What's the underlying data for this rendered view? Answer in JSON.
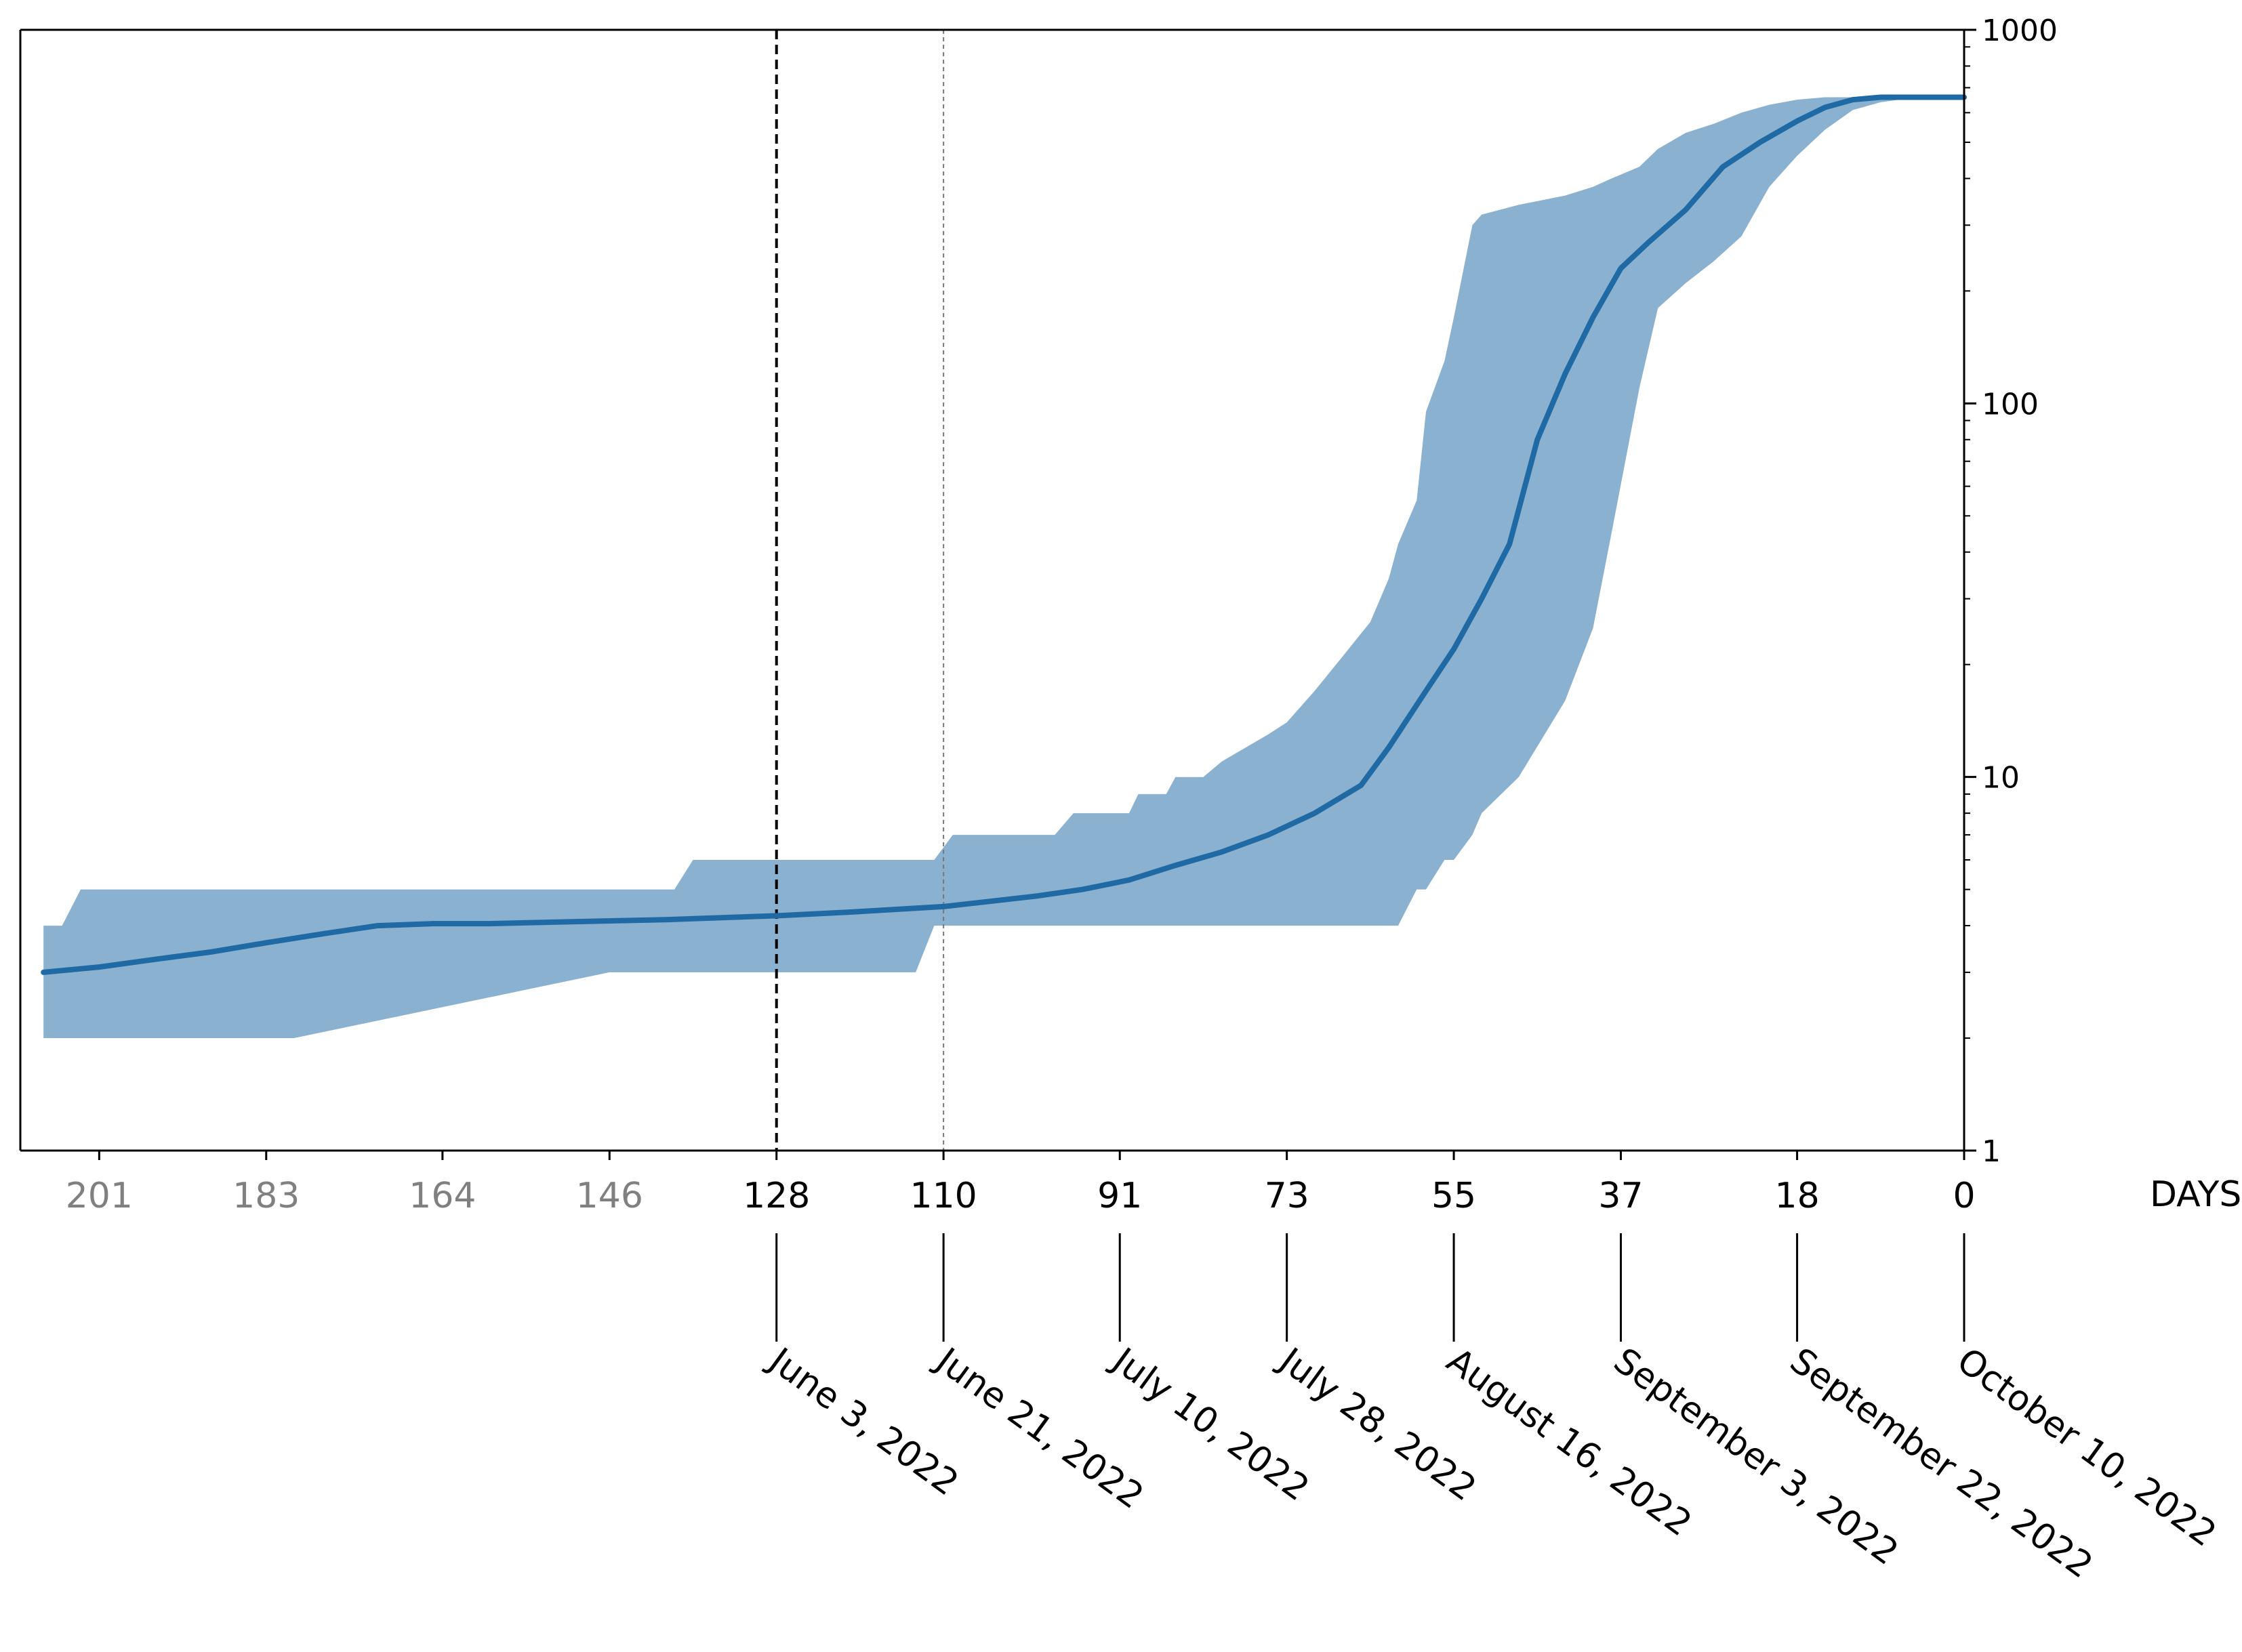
{
  "chart_data": {
    "type": "line",
    "title": "",
    "xlabel": "DAYS",
    "ylabel": "",
    "x_direction": "decreasing",
    "xlim": [
      209.5,
      0
    ],
    "y_scale": "log",
    "ylim": [
      1,
      1000
    ],
    "grid": false,
    "legend": "none",
    "x_ticks": [
      {
        "value": 201,
        "label": "201",
        "style": "past"
      },
      {
        "value": 183,
        "label": "183",
        "style": "past"
      },
      {
        "value": 164,
        "label": "164",
        "style": "past"
      },
      {
        "value": 146,
        "label": "146",
        "style": "past"
      },
      {
        "value": 128,
        "label": "128",
        "style": "dated",
        "date": "June 3, 2022"
      },
      {
        "value": 110,
        "label": "110",
        "style": "dated",
        "date": "June 21, 2022"
      },
      {
        "value": 91,
        "label": "91",
        "style": "dated",
        "date": "July 10, 2022"
      },
      {
        "value": 73,
        "label": "73",
        "style": "dated",
        "date": "July 28, 2022"
      },
      {
        "value": 55,
        "label": "55",
        "style": "dated",
        "date": "August 16, 2022"
      },
      {
        "value": 37,
        "label": "37",
        "style": "dated",
        "date": "September 3, 2022"
      },
      {
        "value": 18,
        "label": "18",
        "style": "dated",
        "date": "September 22, 2022"
      },
      {
        "value": 0,
        "label": "0",
        "style": "dated",
        "date": "October 10, 2022"
      }
    ],
    "y_ticks": [
      {
        "value": 1,
        "label": "1"
      },
      {
        "value": 10,
        "label": "10"
      },
      {
        "value": 100,
        "label": "100"
      },
      {
        "value": 1000,
        "label": "1000"
      }
    ],
    "vlines": [
      {
        "x": 128,
        "style": "dashed-bold"
      },
      {
        "x": 110,
        "style": "dotted-thin"
      }
    ],
    "series": [
      {
        "x": [
          207,
          201,
          195,
          189,
          183,
          177,
          171,
          165,
          159,
          150,
          140,
          128,
          120,
          110,
          100,
          95,
          90,
          85,
          80,
          75,
          70,
          65,
          62,
          58,
          55,
          52,
          49,
          46,
          43,
          40,
          37,
          34,
          30,
          26,
          22,
          18,
          15,
          12,
          9,
          6,
          3,
          0
        ],
        "y": [
          3.0,
          3.1,
          3.25,
          3.4,
          3.6,
          3.8,
          4.0,
          4.05,
          4.05,
          4.1,
          4.15,
          4.25,
          4.35,
          4.5,
          4.8,
          5.0,
          5.3,
          5.8,
          6.3,
          7.0,
          8.0,
          9.5,
          12,
          17,
          22,
          30,
          42,
          80,
          120,
          170,
          230,
          270,
          330,
          430,
          500,
          570,
          620,
          650,
          660,
          660,
          660,
          660
        ]
      }
    ],
    "band": {
      "x": [
        207,
        205,
        203,
        190,
        180,
        146,
        139,
        137,
        115,
        113,
        111,
        109,
        98,
        96,
        91,
        90,
        89,
        86,
        85,
        82,
        80,
        75,
        73,
        70,
        67,
        64,
        62,
        61,
        59,
        58,
        56,
        55,
        53,
        52,
        48,
        43,
        40,
        38,
        35,
        33,
        30,
        27,
        24,
        21,
        18,
        15,
        12,
        9,
        6,
        3,
        0
      ],
      "upper": [
        4,
        4,
        5,
        5,
        5,
        5,
        5,
        6,
        6,
        6,
        6,
        7,
        7,
        8,
        8,
        8,
        9,
        9,
        10,
        10,
        11,
        13,
        14,
        17,
        21,
        26,
        34,
        42,
        55,
        95,
        130,
        170,
        300,
        320,
        340,
        360,
        380,
        400,
        430,
        480,
        530,
        560,
        600,
        630,
        650,
        660,
        660,
        660,
        660,
        660,
        660
      ],
      "lower": [
        2,
        2,
        2,
        2,
        2,
        3,
        3,
        3,
        3,
        3,
        4,
        4,
        4,
        4,
        4,
        4,
        4,
        4,
        4,
        4,
        4,
        4,
        4,
        4,
        4,
        4,
        4,
        4,
        5,
        5,
        6,
        6,
        7,
        8,
        10,
        16,
        25,
        45,
        110,
        180,
        210,
        240,
        280,
        380,
        460,
        540,
        610,
        640,
        655,
        660,
        660
      ]
    },
    "colors": {
      "line": "#1f6aa5",
      "band": "#8ab1cf",
      "axis": "#000000",
      "past_tick": "#808080",
      "dated_tick": "#000000"
    }
  }
}
